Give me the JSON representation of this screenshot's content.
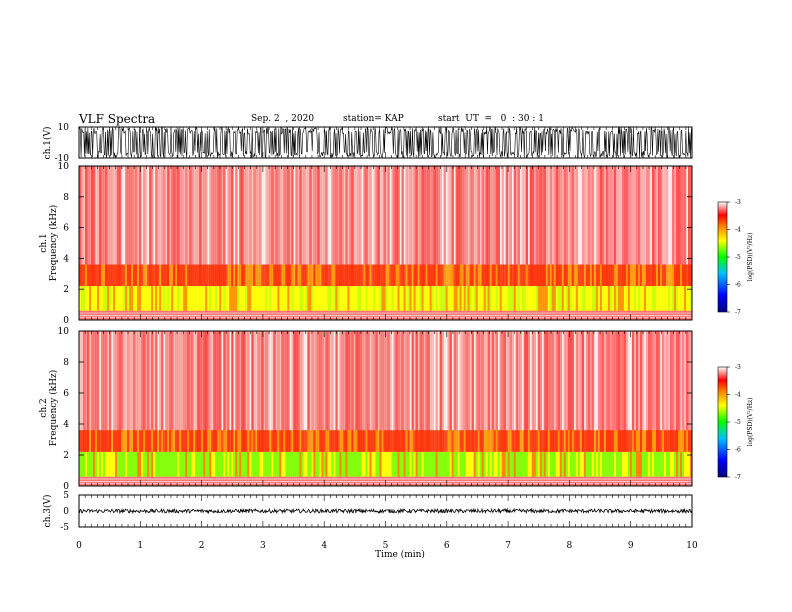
{
  "header": {
    "title": "VLF Spectra",
    "date": "Sep. 2  , 2020",
    "station": "station= KAP",
    "start": "start  UT  =   0  : 30 : 1"
  },
  "chart_data": [
    {
      "type": "line",
      "panel": "ch1-waveform",
      "ylabel": "ch.1(V)",
      "ylim": [
        -10,
        10
      ],
      "yticks": [
        "10",
        "-10"
      ],
      "xlim": [
        0,
        10
      ],
      "color": "#000000"
    },
    {
      "type": "heatmap",
      "panel": "ch1-spectrogram",
      "ylabel": "ch.1\nFrequency  (kHz)",
      "ylim": [
        0,
        10
      ],
      "yticks": [
        "0",
        "2",
        "4",
        "6",
        "8",
        "10"
      ],
      "xlim": [
        0,
        10
      ],
      "colorbar": {
        "label": "log(PSD)(V²/Hz)",
        "range": [
          -7,
          -3
        ],
        "ticks": [
          "-3",
          "-4",
          "-5",
          "-6",
          "-7"
        ]
      }
    },
    {
      "type": "heatmap",
      "panel": "ch2-spectrogram",
      "ylabel": "ch.2\nFrequency  (kHz)",
      "ylim": [
        0,
        10
      ],
      "yticks": [
        "0",
        "2",
        "4",
        "6",
        "8",
        "10"
      ],
      "xlim": [
        0,
        10
      ],
      "colorbar": {
        "label": "log(PSD)(V²/Hz)",
        "range": [
          -7,
          -3
        ],
        "ticks": [
          "-3",
          "-4",
          "-5",
          "-6",
          "-7"
        ]
      }
    },
    {
      "type": "line",
      "panel": "ch3-waveform",
      "ylabel": "ch.3(V)",
      "ylim": [
        -5,
        5
      ],
      "yticks": [
        "5",
        "0",
        "-5"
      ],
      "xlim": [
        0,
        10
      ],
      "xlabel": "Time  (min)",
      "xticks": [
        "0",
        "1",
        "2",
        "3",
        "4",
        "5",
        "6",
        "7",
        "8",
        "9",
        "10"
      ],
      "color": "#000000"
    }
  ],
  "colors": {
    "high": "#ff0000",
    "mid": "#ffff00",
    "low": "#00ff00",
    "min": "#0000ff",
    "bg": "#ffffff"
  }
}
